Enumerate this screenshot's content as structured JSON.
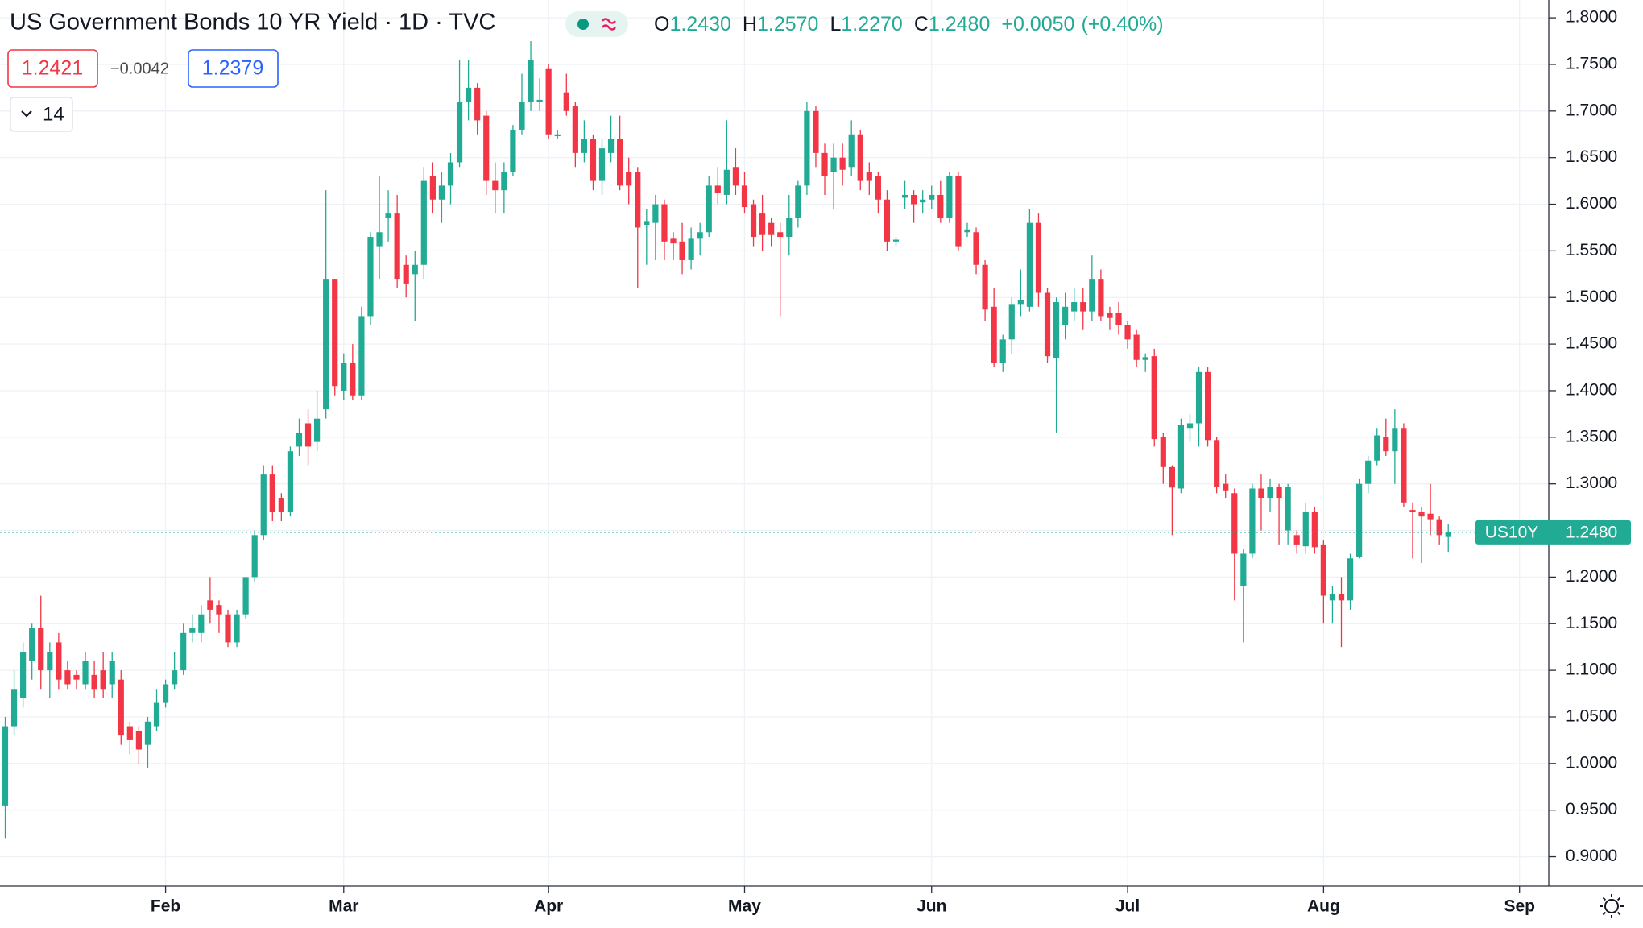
{
  "chart_data": {
    "type": "candlestick",
    "title": "US Government Bonds 10 YR Yield · 1D · TVC",
    "ohlc": [
      {
        "key": "O",
        "value": 1.243,
        "label": "1.2430"
      },
      {
        "key": "H",
        "value": 1.257,
        "label": "1.2570"
      },
      {
        "key": "L",
        "value": 1.227,
        "label": "1.2270"
      },
      {
        "key": "C",
        "value": 1.248,
        "label": "1.2480"
      }
    ],
    "change": {
      "value": 0.005,
      "label": "+0.0050"
    },
    "change_pct": {
      "value": 0.4,
      "label": "(+0.40%)"
    },
    "bid": 1.2421,
    "spread": {
      "value": -0.0042,
      "label": "−0.0042"
    },
    "ask": 1.2379,
    "indicator_length": 14,
    "symbol": "US10Y",
    "last": {
      "value": 1.248,
      "label": "1.2480"
    },
    "up_color": "#22ab94",
    "down_color": "#f23645",
    "grid": true,
    "categories": [
      null,
      null,
      null,
      null,
      null,
      null,
      null,
      null,
      null,
      null,
      null,
      null,
      null,
      null,
      null,
      null,
      null,
      null,
      "Feb",
      null,
      null,
      null,
      null,
      null,
      null,
      null,
      null,
      null,
      null,
      null,
      null,
      null,
      null,
      null,
      null,
      null,
      null,
      null,
      "Mar",
      null,
      null,
      null,
      null,
      null,
      null,
      null,
      null,
      null,
      null,
      null,
      null,
      null,
      null,
      null,
      null,
      null,
      null,
      null,
      null,
      null,
      null,
      "Apr",
      null,
      null,
      null,
      null,
      null,
      null,
      null,
      null,
      null,
      null,
      null,
      null,
      null,
      null,
      null,
      null,
      null,
      null,
      null,
      null,
      null,
      "May",
      null,
      null,
      null,
      null,
      null,
      null,
      null,
      null,
      null,
      null,
      null,
      null,
      null,
      null,
      null,
      null,
      null,
      null,
      null,
      null,
      "Jun",
      null,
      null,
      null,
      null,
      null,
      null,
      null,
      null,
      null,
      null,
      null,
      null,
      null,
      null,
      null,
      null,
      null,
      null,
      null,
      null,
      null,
      "Jul",
      null,
      null,
      null,
      null,
      null,
      null,
      null,
      null,
      null,
      null,
      null,
      null,
      null,
      null,
      null,
      null,
      null,
      null,
      null,
      null,
      null,
      "Aug",
      null,
      null,
      null,
      null,
      null,
      null,
      null,
      null,
      null,
      null,
      null,
      null,
      null,
      null,
      null,
      null,
      null,
      null,
      null,
      null,
      null,
      "Sep",
      null,
      null
    ],
    "open": [
      0.955,
      1.04,
      1.07,
      1.11,
      1.145,
      1.1,
      1.13,
      1.1,
      1.095,
      1.085,
      1.095,
      1.1,
      1.085,
      1.09,
      1.04,
      1.035,
      1.02,
      1.04,
      1.065,
      1.085,
      1.1,
      1.14,
      1.14,
      1.175,
      1.17,
      1.16,
      1.13,
      1.16,
      1.2,
      1.245,
      1.31,
      1.285,
      1.27,
      1.34,
      1.365,
      1.345,
      1.38,
      1.52,
      1.4,
      1.43,
      1.395,
      1.48,
      1.555,
      1.585,
      1.59,
      1.535,
      1.525,
      1.535,
      1.63,
      1.605,
      1.62,
      1.645,
      1.71,
      1.725,
      1.695,
      1.625,
      1.615,
      1.635,
      1.68,
      1.71,
      1.71,
      1.745,
      1.673,
      1.72,
      1.705,
      1.655,
      1.67,
      1.625,
      1.655,
      1.67,
      1.635,
      1.635,
      1.578,
      1.58,
      1.6,
      1.563,
      1.56,
      1.54,
      1.563,
      1.57,
      1.62,
      1.61,
      1.64,
      1.62,
      1.6,
      1.59,
      1.58,
      1.57,
      1.565,
      1.585,
      1.62,
      1.7,
      1.655,
      1.635,
      1.65,
      1.64,
      1.675,
      1.635,
      1.63,
      1.605,
      1.56,
      1.607,
      1.61,
      1.602,
      1.605,
      1.61,
      1.585,
      1.63,
      1.57,
      1.57,
      1.535,
      1.49,
      1.43,
      1.455,
      1.493,
      1.49,
      1.58,
      1.505,
      1.435,
      1.47,
      1.485,
      1.495,
      1.485,
      1.52,
      1.483,
      1.483,
      1.47,
      1.46,
      1.433,
      1.437,
      1.35,
      1.318,
      1.295,
      1.36,
      1.365,
      1.42,
      1.347,
      1.3,
      1.29,
      1.19,
      1.225,
      1.295,
      1.285,
      1.297,
      1.25,
      1.245,
      1.233,
      1.27,
      1.235,
      1.175,
      1.182,
      1.175,
      1.222,
      1.3,
      1.325,
      1.35,
      1.335,
      1.36,
      1.272,
      1.27,
      1.268,
      1.262,
      1.243,
      null,
      null,
      null,
      null,
      null,
      null,
      null,
      null,
      null,
      null
    ],
    "high": [
      1.05,
      1.1,
      1.13,
      1.15,
      1.18,
      1.13,
      1.14,
      1.11,
      1.1,
      1.12,
      1.11,
      1.12,
      1.12,
      1.1,
      1.045,
      1.04,
      1.05,
      1.08,
      1.09,
      1.12,
      1.15,
      1.16,
      1.17,
      1.2,
      1.175,
      1.165,
      1.165,
      1.2,
      1.25,
      1.32,
      1.32,
      1.29,
      1.34,
      1.37,
      1.38,
      1.4,
      1.615,
      1.52,
      1.44,
      1.45,
      1.49,
      1.57,
      1.63,
      1.615,
      1.61,
      1.545,
      1.55,
      1.64,
      1.645,
      1.635,
      1.655,
      1.755,
      1.755,
      1.73,
      1.7,
      1.645,
      1.645,
      1.685,
      1.74,
      1.775,
      1.735,
      1.75,
      1.68,
      1.74,
      1.71,
      1.69,
      1.675,
      1.67,
      1.695,
      1.695,
      1.65,
      1.64,
      1.595,
      1.61,
      1.605,
      1.57,
      1.58,
      1.575,
      1.58,
      1.63,
      1.64,
      1.69,
      1.66,
      1.635,
      1.605,
      1.61,
      1.585,
      1.58,
      1.61,
      1.625,
      1.71,
      1.705,
      1.665,
      1.665,
      1.665,
      1.69,
      1.68,
      1.645,
      1.635,
      1.615,
      1.565,
      1.625,
      1.615,
      1.615,
      1.62,
      1.625,
      1.635,
      1.635,
      1.58,
      1.575,
      1.54,
      1.51,
      1.46,
      1.5,
      1.53,
      1.595,
      1.59,
      1.51,
      1.5,
      1.505,
      1.51,
      1.51,
      1.545,
      1.53,
      1.49,
      1.495,
      1.475,
      1.465,
      1.44,
      1.445,
      1.355,
      1.32,
      1.37,
      1.375,
      1.425,
      1.425,
      1.35,
      1.31,
      1.295,
      1.23,
      1.3,
      1.31,
      1.305,
      1.3,
      1.3,
      1.25,
      1.28,
      1.275,
      1.24,
      1.19,
      1.2,
      1.225,
      1.305,
      1.33,
      1.36,
      1.37,
      1.38,
      1.365,
      1.28,
      1.275,
      1.3,
      1.265,
      1.257,
      null,
      null,
      null,
      null,
      null,
      null,
      null,
      null,
      null,
      null
    ],
    "low": [
      0.92,
      1.03,
      1.06,
      1.09,
      1.08,
      1.07,
      1.08,
      1.08,
      1.08,
      1.08,
      1.07,
      1.07,
      1.07,
      1.02,
      1.01,
      1.0,
      0.995,
      1.035,
      1.06,
      1.08,
      1.095,
      1.13,
      1.13,
      1.15,
      1.14,
      1.125,
      1.125,
      1.155,
      1.195,
      1.24,
      1.26,
      1.26,
      1.265,
      1.33,
      1.32,
      1.335,
      1.37,
      1.395,
      1.39,
      1.39,
      1.39,
      1.47,
      1.52,
      1.56,
      1.51,
      1.5,
      1.475,
      1.52,
      1.59,
      1.58,
      1.6,
      1.64,
      1.69,
      1.675,
      1.61,
      1.59,
      1.59,
      1.63,
      1.675,
      1.7,
      1.7,
      1.67,
      1.67,
      1.695,
      1.64,
      1.645,
      1.615,
      1.61,
      1.645,
      1.615,
      1.6,
      1.51,
      1.535,
      1.54,
      1.54,
      1.54,
      1.525,
      1.53,
      1.545,
      1.565,
      1.6,
      1.6,
      1.61,
      1.59,
      1.555,
      1.55,
      1.555,
      1.48,
      1.545,
      1.575,
      1.61,
      1.64,
      1.61,
      1.595,
      1.62,
      1.63,
      1.615,
      1.61,
      1.59,
      1.55,
      1.555,
      1.595,
      1.58,
      1.59,
      1.595,
      1.58,
      1.58,
      1.55,
      1.565,
      1.525,
      1.475,
      1.425,
      1.42,
      1.44,
      1.48,
      1.485,
      1.49,
      1.43,
      1.355,
      1.455,
      1.475,
      1.465,
      1.475,
      1.475,
      1.465,
      1.46,
      1.445,
      1.425,
      1.42,
      1.34,
      1.3,
      1.245,
      1.29,
      1.345,
      1.34,
      1.34,
      1.29,
      1.285,
      1.175,
      1.13,
      1.22,
      1.25,
      1.27,
      1.235,
      1.235,
      1.225,
      1.225,
      1.225,
      1.15,
      1.15,
      1.125,
      1.165,
      1.22,
      1.29,
      1.32,
      1.33,
      1.3,
      1.275,
      1.22,
      1.215,
      1.245,
      1.235,
      1.227,
      null,
      null,
      null,
      null,
      null,
      null,
      null,
      null,
      null,
      null
    ],
    "close": [
      1.04,
      1.08,
      1.12,
      1.145,
      1.1,
      1.12,
      1.09,
      1.085,
      1.09,
      1.11,
      1.08,
      1.08,
      1.11,
      1.03,
      1.025,
      1.015,
      1.045,
      1.065,
      1.085,
      1.1,
      1.14,
      1.145,
      1.16,
      1.165,
      1.16,
      1.13,
      1.16,
      1.2,
      1.245,
      1.31,
      1.27,
      1.27,
      1.335,
      1.355,
      1.34,
      1.37,
      1.52,
      1.405,
      1.43,
      1.395,
      1.48,
      1.565,
      1.57,
      1.59,
      1.52,
      1.515,
      1.535,
      1.625,
      1.605,
      1.62,
      1.645,
      1.71,
      1.725,
      1.69,
      1.625,
      1.615,
      1.635,
      1.68,
      1.71,
      1.755,
      1.712,
      1.675,
      1.675,
      1.7,
      1.655,
      1.67,
      1.625,
      1.66,
      1.67,
      1.62,
      1.62,
      1.575,
      1.582,
      1.6,
      1.56,
      1.558,
      1.54,
      1.563,
      1.57,
      1.62,
      1.612,
      1.637,
      1.62,
      1.597,
      1.565,
      1.567,
      1.567,
      1.565,
      1.585,
      1.62,
      1.7,
      1.655,
      1.63,
      1.65,
      1.637,
      1.675,
      1.625,
      1.625,
      1.605,
      1.56,
      1.562,
      1.61,
      1.6,
      1.605,
      1.61,
      1.585,
      1.63,
      1.555,
      1.573,
      1.535,
      1.487,
      1.43,
      1.455,
      1.493,
      1.497,
      1.58,
      1.505,
      1.437,
      1.495,
      1.49,
      1.495,
      1.485,
      1.52,
      1.48,
      1.478,
      1.47,
      1.455,
      1.433,
      1.436,
      1.348,
      1.318,
      1.296,
      1.363,
      1.365,
      1.42,
      1.347,
      1.297,
      1.293,
      1.225,
      1.225,
      1.295,
      1.285,
      1.297,
      1.285,
      1.297,
      1.235,
      1.27,
      1.232,
      1.18,
      1.182,
      1.175,
      1.22,
      1.3,
      1.325,
      1.352,
      1.335,
      1.36,
      1.28,
      1.27,
      1.265,
      1.262,
      1.245,
      1.248,
      null,
      null,
      null,
      null,
      null,
      null,
      null,
      null,
      null,
      null
    ],
    "ylim": [
      0.8685,
      1.8191
    ],
    "yticks": [
      {
        "value": 0.9,
        "label": "0.9000"
      },
      {
        "value": 0.95,
        "label": "0.9500"
      },
      {
        "value": 1.0,
        "label": "1.0000"
      },
      {
        "value": 1.05,
        "label": "1.0500"
      },
      {
        "value": 1.1,
        "label": "1.1000"
      },
      {
        "value": 1.15,
        "label": "1.1500"
      },
      {
        "value": 1.2,
        "label": "1.2000"
      },
      {
        "value": 1.25,
        "label": "1.2500"
      },
      {
        "value": 1.3,
        "label": "1.3000"
      },
      {
        "value": 1.35,
        "label": "1.3500"
      },
      {
        "value": 1.4,
        "label": "1.4000"
      },
      {
        "value": 1.45,
        "label": "1.4500"
      },
      {
        "value": 1.5,
        "label": "1.5000"
      },
      {
        "value": 1.55,
        "label": "1.5500"
      },
      {
        "value": 1.6,
        "label": "1.6000"
      },
      {
        "value": 1.65,
        "label": "1.6500"
      },
      {
        "value": 1.7,
        "label": "1.7000"
      },
      {
        "value": 1.75,
        "label": "1.7500"
      },
      {
        "value": 1.8,
        "label": "1.8000"
      }
    ]
  }
}
